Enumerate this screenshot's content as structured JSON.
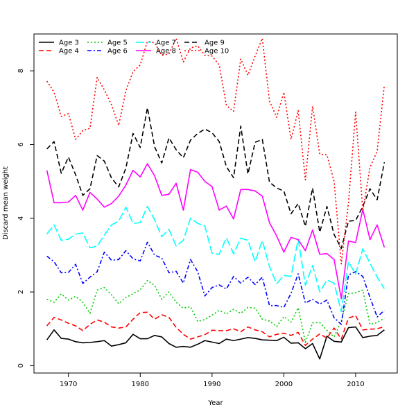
{
  "chart_data": {
    "type": "line",
    "title": "",
    "xlabel": "Year",
    "ylabel": "Discard mean weight",
    "xlim": [
      1965.2,
      2015.8
    ],
    "ylim": [
      -0.2,
      9.0
    ],
    "xticks": [
      1970,
      1980,
      1990,
      2000,
      2010
    ],
    "yticks": [
      0,
      2,
      4,
      6,
      8
    ],
    "legend_position": "top-left",
    "x": [
      1967,
      1968,
      1969,
      1970,
      1971,
      1972,
      1973,
      1974,
      1975,
      1976,
      1977,
      1978,
      1979,
      1980,
      1981,
      1982,
      1983,
      1984,
      1985,
      1986,
      1987,
      1988,
      1989,
      1990,
      1991,
      1992,
      1993,
      1994,
      1995,
      1996,
      1997,
      1998,
      1999,
      2000,
      2001,
      2002,
      2003,
      2004,
      2005,
      2006,
      2007,
      2008,
      2009,
      2010,
      2011,
      2012,
      2013,
      2014
    ],
    "series": [
      {
        "name": "Age 3",
        "color": "#000000",
        "dash": "solid",
        "values": [
          0.7,
          0.97,
          0.74,
          0.72,
          0.65,
          0.62,
          0.63,
          0.65,
          0.68,
          0.53,
          0.57,
          0.62,
          0.85,
          0.73,
          0.73,
          0.82,
          0.78,
          0.6,
          0.5,
          0.52,
          0.5,
          0.58,
          0.68,
          0.64,
          0.6,
          0.72,
          0.68,
          0.72,
          0.76,
          0.74,
          0.7,
          0.69,
          0.68,
          0.77,
          0.61,
          0.62,
          0.46,
          0.6,
          0.18,
          0.8,
          0.66,
          0.64,
          1.03,
          1.05,
          0.76,
          0.8,
          0.82,
          0.97
        ]
      },
      {
        "name": "Age 4",
        "color": "#ff0000",
        "dash": "dashed",
        "values": [
          1.08,
          1.31,
          1.24,
          1.15,
          1.08,
          0.95,
          1.12,
          1.24,
          1.18,
          1.05,
          1.02,
          1.05,
          1.26,
          1.44,
          1.45,
          1.26,
          1.38,
          1.31,
          1.04,
          0.85,
          0.72,
          0.78,
          0.84,
          0.96,
          0.95,
          0.95,
          1.0,
          0.92,
          1.05,
          0.97,
          0.92,
          0.78,
          0.85,
          0.88,
          0.82,
          0.9,
          0.55,
          0.72,
          0.86,
          0.75,
          1.02,
          0.72,
          1.29,
          1.36,
          0.97,
          0.99,
          1.0,
          1.06
        ]
      },
      {
        "name": "Age 5",
        "color": "#00cc00",
        "dash": "dotted",
        "values": [
          1.8,
          1.72,
          1.95,
          1.78,
          1.88,
          1.72,
          1.42,
          2.05,
          2.12,
          1.92,
          1.68,
          1.85,
          1.95,
          2.06,
          2.31,
          2.18,
          1.8,
          2.0,
          1.72,
          1.56,
          1.6,
          1.2,
          1.25,
          1.37,
          1.5,
          1.4,
          1.53,
          1.42,
          1.58,
          1.56,
          1.26,
          1.21,
          1.06,
          1.33,
          1.18,
          1.57,
          0.63,
          1.16,
          1.17,
          0.96,
          0.78,
          1.21,
          1.95,
          1.98,
          2.05,
          1.12,
          1.17,
          1.29
        ]
      },
      {
        "name": "Age 6",
        "color": "#0000ff",
        "dash": "dashdot",
        "values": [
          2.97,
          2.82,
          2.52,
          2.53,
          2.75,
          2.23,
          2.4,
          2.55,
          3.08,
          2.86,
          2.88,
          3.12,
          2.9,
          2.84,
          3.35,
          3.0,
          2.92,
          2.52,
          2.56,
          2.24,
          2.88,
          2.55,
          1.89,
          2.12,
          2.19,
          2.08,
          2.42,
          2.24,
          2.4,
          2.2,
          2.4,
          1.63,
          1.63,
          1.58,
          1.96,
          2.49,
          1.7,
          1.8,
          1.67,
          1.78,
          1.3,
          1.12,
          2.46,
          2.55,
          2.42,
          1.85,
          1.32,
          1.5
        ]
      },
      {
        "name": "Age 7",
        "color": "#00ffff",
        "dash": "longdash",
        "values": [
          3.57,
          3.82,
          3.4,
          3.43,
          3.57,
          3.6,
          3.2,
          3.24,
          3.54,
          3.82,
          3.92,
          4.3,
          3.86,
          3.88,
          4.32,
          3.96,
          3.5,
          3.7,
          3.25,
          3.4,
          4.0,
          3.86,
          3.79,
          3.05,
          3.02,
          3.47,
          3.03,
          3.46,
          3.4,
          2.82,
          3.4,
          2.69,
          2.22,
          2.45,
          2.42,
          3.43,
          2.18,
          2.72,
          2.0,
          2.32,
          2.24,
          1.47,
          2.82,
          2.48,
          3.17,
          2.78,
          2.4,
          2.09
        ]
      },
      {
        "name": "Age 8",
        "color": "#ff00ff",
        "dash": "solid",
        "values": [
          5.3,
          4.42,
          4.42,
          4.44,
          4.62,
          4.22,
          4.7,
          4.52,
          4.3,
          4.4,
          4.6,
          4.9,
          5.3,
          5.12,
          5.48,
          5.15,
          4.62,
          4.65,
          4.95,
          4.22,
          5.32,
          5.25,
          5.0,
          4.86,
          4.22,
          4.33,
          3.98,
          4.78,
          4.78,
          4.74,
          4.6,
          3.88,
          3.52,
          3.08,
          3.48,
          3.42,
          3.12,
          3.68,
          3.02,
          3.04,
          2.88,
          1.82,
          3.38,
          3.34,
          4.24,
          3.42,
          3.82,
          3.21
        ]
      },
      {
        "name": "Age 9",
        "color": "#000000",
        "dash": "dashed",
        "values": [
          5.88,
          6.08,
          5.22,
          5.66,
          5.18,
          4.62,
          4.8,
          5.7,
          5.55,
          5.09,
          4.85,
          5.36,
          6.3,
          5.92,
          7.0,
          5.94,
          5.5,
          6.18,
          5.86,
          5.64,
          6.12,
          6.3,
          6.42,
          6.32,
          6.08,
          5.4,
          5.1,
          6.5,
          5.2,
          6.06,
          6.14,
          4.98,
          4.82,
          4.74,
          4.12,
          4.4,
          3.78,
          4.82,
          3.62,
          4.32,
          3.56,
          3.18,
          3.92,
          3.94,
          4.32,
          4.8,
          4.5,
          5.52
        ]
      },
      {
        "name": "Age 10",
        "color": "#ff0000",
        "dash": "dotted",
        "values": [
          7.72,
          7.42,
          6.76,
          6.84,
          6.14,
          6.38,
          6.44,
          7.82,
          7.48,
          7.08,
          6.52,
          7.46,
          7.98,
          8.16,
          8.8,
          8.76,
          8.42,
          8.46,
          8.88,
          8.24,
          8.62,
          8.68,
          8.42,
          8.4,
          8.16,
          7.06,
          6.9,
          8.32,
          7.88,
          8.4,
          8.88,
          7.18,
          6.74,
          7.42,
          6.14,
          6.92,
          5.04,
          7.04,
          5.74,
          5.72,
          5.0,
          2.76,
          4.42,
          6.88,
          4.2,
          5.38,
          5.82,
          7.62
        ]
      }
    ]
  }
}
